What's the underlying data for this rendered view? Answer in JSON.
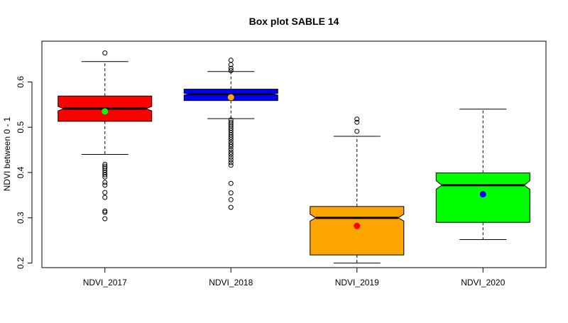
{
  "chart_data": {
    "type": "box",
    "title": "Box plot SABLE 14",
    "xlabel": "",
    "ylabel": "NDVI between 0 - 1",
    "ylim": [
      0.19,
      0.69
    ],
    "yticks": [
      0.2,
      0.3,
      0.4,
      0.5,
      0.6
    ],
    "grid": false,
    "notched": true,
    "series": [
      {
        "name": "NDVI_2017",
        "color": "#ff0000",
        "mean_color": "#00ff00",
        "whisker_low": 0.44,
        "q1": 0.513,
        "median": 0.541,
        "q3": 0.569,
        "whisker_high": 0.645,
        "notch_low": 0.536,
        "notch_high": 0.546,
        "mean": 0.535,
        "outliers": [
          0.664,
          0.418,
          0.414,
          0.41,
          0.405,
          0.4,
          0.395,
          0.39,
          0.378,
          0.372,
          0.356,
          0.345,
          0.315,
          0.312,
          0.298
        ]
      },
      {
        "name": "NDVI_2018",
        "color": "#0000ff",
        "mean_color": "#ffa500",
        "whisker_low": 0.519,
        "q1": 0.559,
        "median": 0.573,
        "q3": 0.584,
        "whisker_high": 0.623,
        "notch_low": 0.571,
        "notch_high": 0.575,
        "mean": 0.566,
        "outliers": [
          0.648,
          0.638,
          0.63,
          0.625,
          0.516,
          0.511,
          0.507,
          0.503,
          0.498,
          0.493,
          0.488,
          0.483,
          0.478,
          0.473,
          0.467,
          0.462,
          0.457,
          0.451,
          0.445,
          0.44,
          0.434,
          0.428,
          0.422,
          0.416,
          0.376,
          0.355,
          0.34,
          0.323
        ]
      },
      {
        "name": "NDVI_2019",
        "color": "#ffa500",
        "mean_color": "#ff0000",
        "whisker_low": 0.2,
        "q1": 0.218,
        "median": 0.3,
        "q3": 0.325,
        "whisker_high": 0.48,
        "notch_low": 0.293,
        "notch_high": 0.308,
        "mean": 0.282,
        "outliers": [
          0.518,
          0.511,
          0.491
        ]
      },
      {
        "name": "NDVI_2020",
        "color": "#00ff00",
        "mean_color": "#0000ff",
        "whisker_low": 0.252,
        "q1": 0.29,
        "median": 0.372,
        "q3": 0.399,
        "whisker_high": 0.54,
        "notch_low": 0.363,
        "notch_high": 0.382,
        "mean": 0.352,
        "outliers": []
      }
    ]
  }
}
